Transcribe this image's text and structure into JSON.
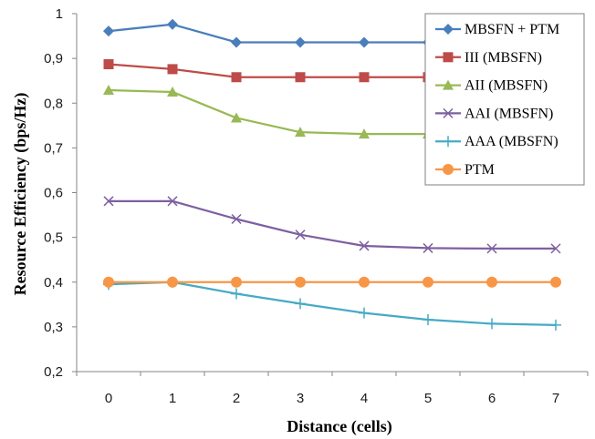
{
  "chart_data": {
    "type": "line",
    "xlabel": "Distance (cells)",
    "ylabel": "Resource Efficiency (bps/Hz)",
    "x": [
      0,
      1,
      2,
      3,
      4,
      5,
      6,
      7
    ],
    "x_tick_labels": [
      "0",
      "1",
      "2",
      "3",
      "4",
      "5",
      "6",
      "7"
    ],
    "xlim": [
      -0.5,
      7.5
    ],
    "ylim": [
      0.2,
      1.0
    ],
    "y_ticks": [
      0.2,
      0.3,
      0.4,
      0.5,
      0.6,
      0.7,
      0.8,
      0.9,
      1.0
    ],
    "y_tick_labels": [
      "0,2",
      "0,3",
      "0,4",
      "0,5",
      "0,6",
      "0,7",
      "0,8",
      "0,9",
      "1"
    ],
    "grid": "none",
    "legend_position": "top-right",
    "series": [
      {
        "name": "MBSFN + PTM",
        "color": "#4a7ebb",
        "marker": "diamond",
        "values": [
          0.961,
          0.976,
          0.936,
          0.936,
          0.936,
          0.936,
          0.936,
          0.936
        ]
      },
      {
        "name": "III (MBSFN)",
        "color": "#be4b48",
        "marker": "square",
        "values": [
          0.887,
          0.876,
          0.858,
          0.858,
          0.858,
          0.858,
          0.858,
          0.858
        ]
      },
      {
        "name": "AII (MBSFN)",
        "color": "#98b954",
        "marker": "triangle",
        "values": [
          0.829,
          0.825,
          0.767,
          0.735,
          0.731,
          0.731,
          0.731,
          0.731
        ]
      },
      {
        "name": "AAI (MBSFN)",
        "color": "#7d60a0",
        "marker": "x",
        "values": [
          0.581,
          0.581,
          0.541,
          0.506,
          0.481,
          0.476,
          0.475,
          0.475
        ]
      },
      {
        "name": "AAA (MBSFN)",
        "color": "#46aac5",
        "marker": "plus",
        "values": [
          0.395,
          0.4,
          0.374,
          0.352,
          0.331,
          0.316,
          0.307,
          0.304
        ]
      },
      {
        "name": "PTM",
        "color": "#f79646",
        "marker": "circle",
        "values": [
          0.4,
          0.4,
          0.4,
          0.4,
          0.4,
          0.4,
          0.4,
          0.4
        ]
      }
    ]
  }
}
